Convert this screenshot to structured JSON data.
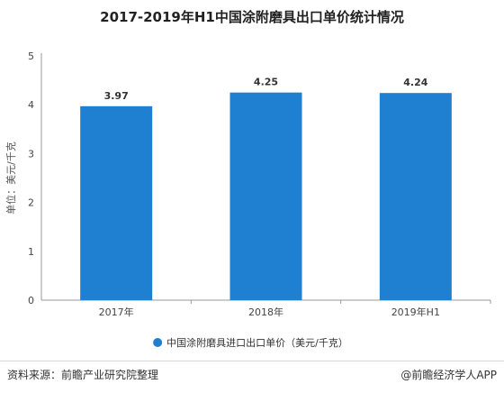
{
  "chart_data": {
    "type": "bar",
    "title": "2017-2019年H1中国涂附磨具出口单价统计情况",
    "ylabel": "单位：美元/千克",
    "categories": [
      "2017年",
      "2018年",
      "2019年H1"
    ],
    "series": [
      {
        "name": "中国涂附磨具进口出口单价（美元/千克）",
        "values": [
          3.97,
          4.25,
          4.24
        ]
      }
    ],
    "ylim": [
      0,
      5
    ],
    "yticks": [
      0,
      1,
      2,
      3,
      4,
      5
    ],
    "bar_color": "#1f7fd0",
    "grid": false,
    "legend_position": "bottom"
  },
  "footer": {
    "source": "资料来源：前瞻产业研究院整理",
    "brand": "@前瞻经济学人APP"
  }
}
